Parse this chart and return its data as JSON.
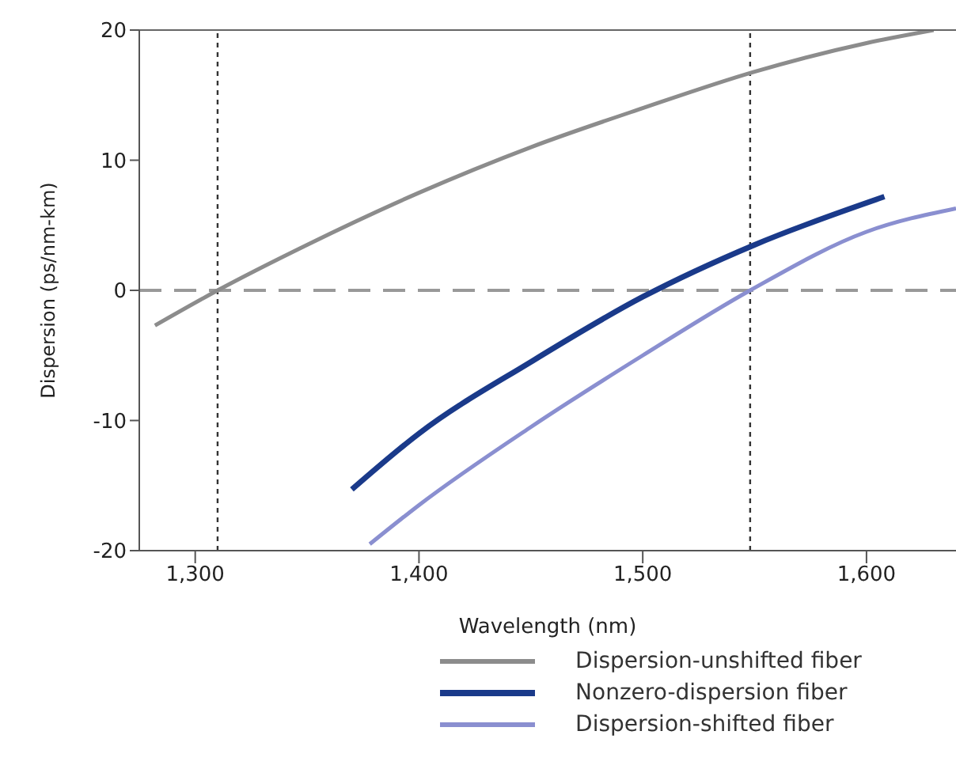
{
  "chart_data": {
    "type": "line",
    "xlabel": "Wavelength (nm)",
    "ylabel": "Dispersion (ps/nm-km)",
    "xlim": [
      1275,
      1640
    ],
    "xticks": [
      {
        "value": 1300,
        "label": "1,300"
      },
      {
        "value": 1400,
        "label": "1,400"
      },
      {
        "value": 1500,
        "label": "1,500"
      },
      {
        "value": 1600,
        "label": "1,600"
      }
    ],
    "ylim": [
      -20,
      20
    ],
    "yticks": [
      -20,
      -10,
      0,
      10,
      20
    ],
    "legend": "bottom",
    "marker": "none",
    "series": [
      {
        "name": "Dispersion-unshifted fiber",
        "color": "#8c8c8c",
        "x": [
          1282,
          1310,
          1350,
          1400,
          1450,
          1500,
          1550,
          1600,
          1630
        ],
        "values": [
          -2.7,
          0,
          3.5,
          7.5,
          11,
          14,
          16.8,
          19,
          20
        ]
      },
      {
        "name": "Nonzero-dispersion fiber",
        "color": "#1a3a8a",
        "x": [
          1370,
          1400,
          1450,
          1500,
          1550,
          1608
        ],
        "values": [
          -15.3,
          -11,
          -5.5,
          -0.5,
          3.5,
          7.2
        ]
      },
      {
        "name": "Dispersion-shifted fiber",
        "color": "#8a8fd0",
        "x": [
          1378,
          1400,
          1450,
          1500,
          1548,
          1600,
          1640
        ],
        "values": [
          -19.5,
          -16.5,
          -10.5,
          -5,
          0,
          4.5,
          6.3
        ]
      }
    ],
    "ref_lines": [
      {
        "axis": "y",
        "value": 0,
        "color": "#999999",
        "line_style": "dashed"
      },
      {
        "axis": "x",
        "value": 1310,
        "color": "#333333",
        "line_style": "dotted"
      },
      {
        "axis": "x",
        "value": 1548,
        "color": "#333333",
        "line_style": "dotted"
      }
    ]
  }
}
